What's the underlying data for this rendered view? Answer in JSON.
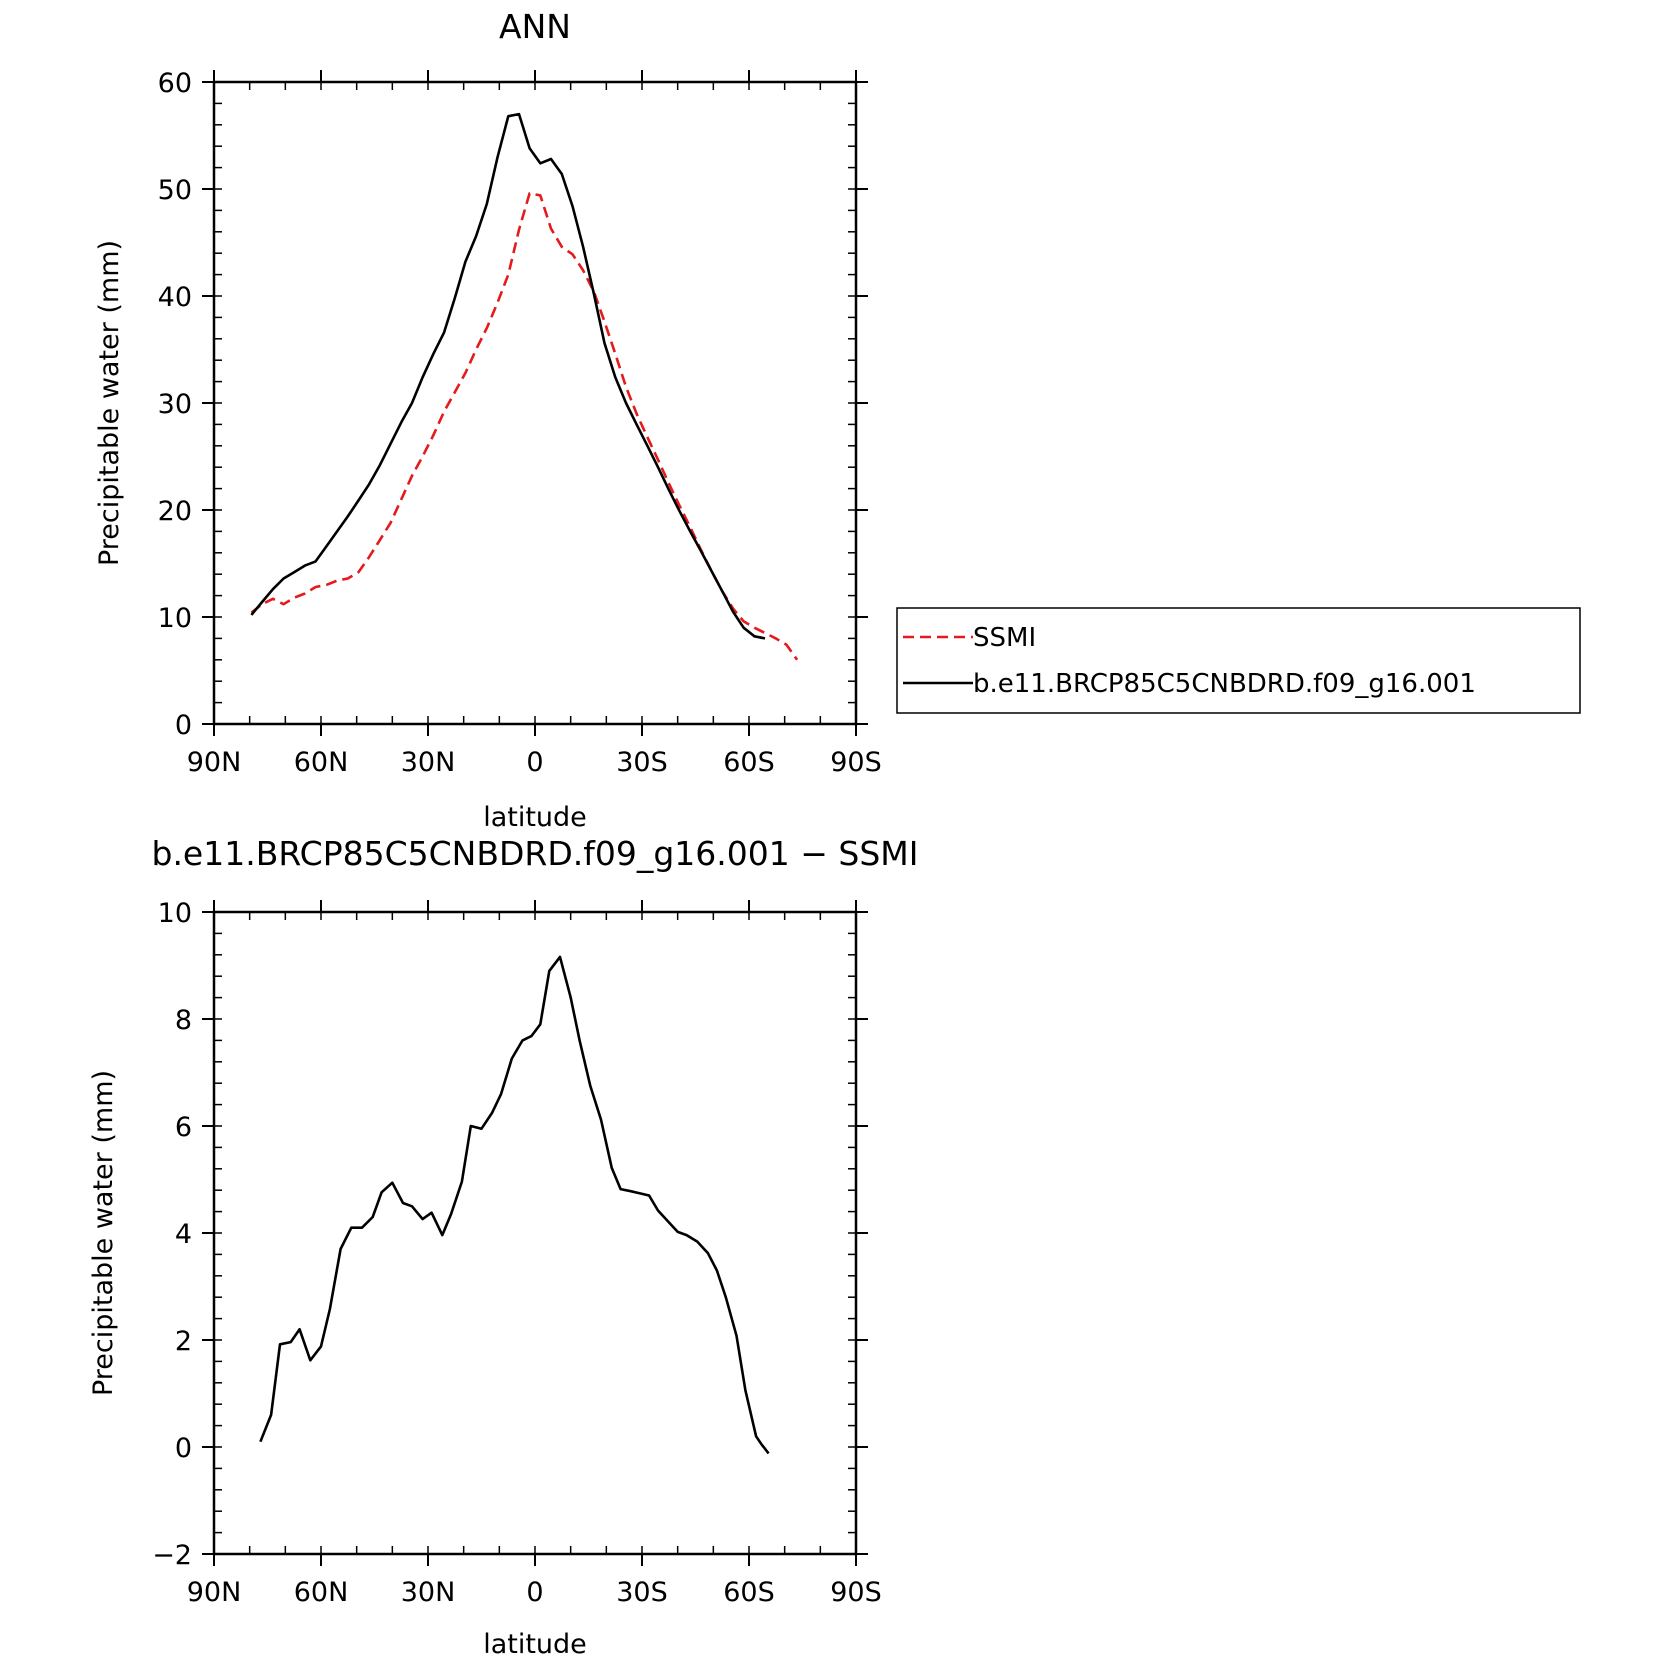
{
  "colors": {
    "model": "#000000",
    "obs": "#e41a1c",
    "axis": "#000000",
    "background": "#ffffff"
  },
  "chart_data": [
    {
      "type": "line",
      "title": "ANN",
      "xlabel": "latitude",
      "ylabel": "Precipitable water (mm)",
      "xlim": [
        90,
        -90
      ],
      "ylim": [
        0,
        60
      ],
      "xticks": [
        90,
        60,
        30,
        0,
        -30,
        -60,
        -90
      ],
      "xtick_labels": [
        "90N",
        "60N",
        "30N",
        "0",
        "30S",
        "60S",
        "90S"
      ],
      "yticks": [
        0,
        10,
        20,
        30,
        40,
        50,
        60
      ],
      "ytick_labels": [
        "0",
        "10",
        "20",
        "30",
        "40",
        "50",
        "60"
      ],
      "legend": {
        "placement": "right",
        "entries": [
          "SSMI",
          "b.e11.BRCP85C5CNBDRD.f09_g16.001"
        ]
      },
      "series": [
        {
          "name": "SSMI",
          "style": "dashed",
          "color": "#e41a1c",
          "x": [
            79.5,
            76.5,
            73.5,
            70.5,
            67.5,
            64.5,
            61.5,
            58.5,
            55.5,
            52.5,
            49.5,
            46.5,
            43.5,
            40.5,
            37.5,
            34.5,
            31.5,
            28.5,
            25.5,
            22.5,
            19.5,
            16.5,
            13.5,
            10.5,
            7.5,
            4.5,
            1.5,
            -1.5,
            -4.5,
            -7.5,
            -10.5,
            -13.5,
            -16.5,
            -19.5,
            -22.5,
            -25.5,
            -28.5,
            -31.5,
            -34.5,
            -37.5,
            -40.5,
            -43.5,
            -46.5,
            -49.5,
            -52.5,
            -55.5,
            -58.5,
            -61.5,
            -64.5,
            -67.5,
            -70.5,
            -73.5
          ],
          "y": [
            10.4,
            11.2,
            11.7,
            11.2,
            11.8,
            12.2,
            12.8,
            13.0,
            13.4,
            13.6,
            14.2,
            15.6,
            17.2,
            18.8,
            21.0,
            23.2,
            25.0,
            27.0,
            29.2,
            31.0,
            32.8,
            35.0,
            37.0,
            39.4,
            42.0,
            46.2,
            49.6,
            49.4,
            46.3,
            44.6,
            43.9,
            42.4,
            40.4,
            37.6,
            34.6,
            31.5,
            29.0,
            26.8,
            24.7,
            22.5,
            20.4,
            18.4,
            16.3,
            14.3,
            12.4,
            10.8,
            9.6,
            9.0,
            8.5,
            8.0,
            7.4,
            6.0
          ]
        },
        {
          "name": "b.e11.BRCP85C5CNBDRD.f09_g16.001",
          "style": "solid",
          "color": "#000000",
          "x": [
            79.5,
            76.5,
            73.5,
            70.5,
            67.5,
            64.5,
            61.5,
            58.5,
            55.5,
            52.5,
            49.5,
            46.5,
            43.5,
            40.5,
            37.5,
            34.5,
            31.5,
            28.5,
            25.5,
            22.5,
            19.5,
            16.5,
            13.5,
            10.5,
            7.5,
            4.5,
            1.5,
            -1.5,
            -4.5,
            -7.5,
            -10.5,
            -13.5,
            -16.5,
            -19.5,
            -22.5,
            -25.5,
            -28.5,
            -31.5,
            -34.5,
            -37.5,
            -40.5,
            -43.5,
            -46.5,
            -49.5,
            -52.5,
            -55.5,
            -58.5,
            -61.5,
            -64.5
          ],
          "y": [
            10.2,
            11.4,
            12.6,
            13.6,
            14.2,
            14.8,
            15.2,
            16.6,
            18.0,
            19.4,
            20.9,
            22.4,
            24.2,
            26.2,
            28.2,
            30.0,
            32.4,
            34.6,
            36.6,
            39.8,
            43.2,
            45.6,
            48.6,
            53.0,
            56.8,
            57.0,
            53.8,
            52.4,
            52.8,
            51.4,
            48.4,
            44.6,
            40.2,
            35.6,
            32.4,
            30.0,
            28.0,
            26.0,
            24.0,
            21.9,
            19.9,
            18.0,
            16.2,
            14.3,
            12.4,
            10.5,
            9.0,
            8.2,
            8.0
          ]
        }
      ]
    },
    {
      "type": "line",
      "title": "b.e11.BRCP85C5CNBDRD.f09_g16.001 − SSMI",
      "xlabel": "latitude",
      "ylabel": "Precipitable water (mm)",
      "xlim": [
        90,
        -90
      ],
      "ylim": [
        -2,
        10
      ],
      "xticks": [
        90,
        60,
        30,
        0,
        -30,
        -60,
        -90
      ],
      "xtick_labels": [
        "90N",
        "60N",
        "30N",
        "0",
        "30S",
        "60S",
        "90S"
      ],
      "yticks": [
        -2,
        0,
        2,
        4,
        6,
        8,
        10
      ],
      "ytick_labels": [
        "−2",
        "0",
        "2",
        "4",
        "6",
        "8",
        "10"
      ],
      "series": [
        {
          "name": "b.e11.BRCP85C5CNBDRD.f09_g16.001 − SSMI",
          "style": "solid",
          "color": "#000000",
          "x": [
            77.0,
            74.0,
            71.5,
            68.5,
            66.0,
            63.0,
            60.0,
            57.5,
            54.5,
            51.5,
            48.5,
            45.5,
            43.0,
            40.0,
            37.0,
            34.5,
            31.5,
            29.0,
            26.0,
            23.5,
            20.5,
            18.0,
            15.0,
            12.0,
            9.5,
            6.5,
            3.5,
            1.0,
            -1.5,
            -4.0,
            -7.0,
            -10.0,
            -12.5,
            -15.5,
            -18.5,
            -21.5,
            -24.0,
            -27.0,
            -32.0,
            -34.5,
            -37.5,
            -40.0,
            -42.5,
            -45.5,
            -48.5,
            -51.0,
            -53.5,
            -56.5,
            -59.0,
            -62.0,
            -63.5,
            -65.5
          ],
          "y": [
            0.1,
            0.6,
            1.92,
            1.96,
            2.2,
            1.62,
            1.88,
            2.58,
            3.7,
            4.1,
            4.1,
            4.3,
            4.76,
            4.94,
            4.56,
            4.5,
            4.26,
            4.38,
            3.96,
            4.36,
            4.96,
            6.0,
            5.95,
            6.25,
            6.6,
            7.26,
            7.6,
            7.68,
            7.9,
            8.9,
            9.16,
            8.4,
            7.6,
            6.75,
            6.12,
            5.22,
            4.82,
            4.78,
            4.7,
            4.42,
            4.2,
            4.02,
            3.96,
            3.84,
            3.62,
            3.3,
            2.8,
            2.08,
            1.06,
            0.2,
            0.05,
            -0.12
          ]
        }
      ]
    }
  ]
}
